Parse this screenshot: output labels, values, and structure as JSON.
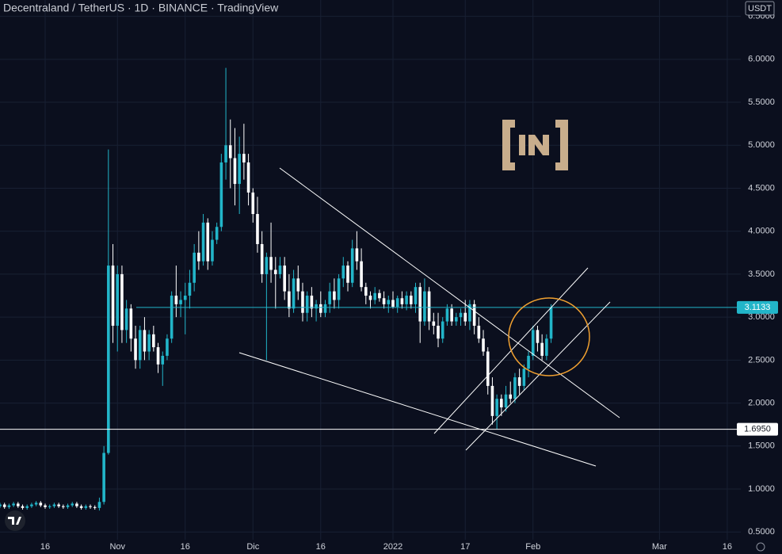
{
  "chart_data": {
    "type": "candlestick",
    "title": "Decentraland / TetherUS · 1D · BINANCE · TradingView",
    "currency": "USDT",
    "up_color": "#22b5c9",
    "down_color": "#ffffff",
    "grid": true,
    "ylim": [
      0.41,
      6.69
    ],
    "yticks": [
      {
        "value": 0.5,
        "label": "0.5000"
      },
      {
        "value": 1.0,
        "label": "1.0000"
      },
      {
        "value": 1.5,
        "label": "1.5000"
      },
      {
        "value": 2.0,
        "label": "2.0000"
      },
      {
        "value": 2.5,
        "label": "2.5000"
      },
      {
        "value": 3.0,
        "label": "3.0000"
      },
      {
        "value": 3.5,
        "label": "3.5000"
      },
      {
        "value": 4.0,
        "label": "4.0000"
      },
      {
        "value": 4.5,
        "label": "4.5000"
      },
      {
        "value": 5.0,
        "label": "5.0000"
      },
      {
        "value": 5.5,
        "label": "5.5000"
      },
      {
        "value": 6.0,
        "label": "6.0000"
      },
      {
        "value": 6.5,
        "label": "6.5000"
      }
    ],
    "xlim": [
      -26,
      138
    ],
    "xticks": [
      {
        "value": -16,
        "label": "16"
      },
      {
        "value": 0,
        "label": "Nov"
      },
      {
        "value": 15,
        "label": "16"
      },
      {
        "value": 30,
        "label": "Dic"
      },
      {
        "value": 45,
        "label": "16"
      },
      {
        "value": 61,
        "label": "2022"
      },
      {
        "value": 77,
        "label": "17"
      },
      {
        "value": 92,
        "label": "Feb"
      },
      {
        "value": 120,
        "label": "Mar"
      },
      {
        "value": 135,
        "label": "16"
      }
    ],
    "price_lines": [
      {
        "value": 3.1133,
        "label": "3.1133",
        "color": "#22b5c9"
      },
      {
        "value": 1.695,
        "label": "1.6950",
        "color": "#ffffff"
      }
    ],
    "x": [
      -26,
      -25,
      -24,
      -23,
      -22,
      -21,
      -20,
      -19,
      -18,
      -17,
      -16,
      -15,
      -14,
      -13,
      -12,
      -11,
      -10,
      -9,
      -8,
      -7,
      -6,
      -5,
      -4,
      -3,
      -2,
      -1,
      0,
      1,
      2,
      3,
      4,
      5,
      6,
      7,
      8,
      9,
      10,
      11,
      12,
      13,
      14,
      15,
      16,
      17,
      18,
      19,
      20,
      21,
      22,
      23,
      24,
      25,
      26,
      27,
      28,
      29,
      30,
      31,
      32,
      33,
      34,
      35,
      36,
      37,
      38,
      39,
      40,
      41,
      42,
      43,
      44,
      45,
      46,
      47,
      48,
      49,
      50,
      51,
      52,
      53,
      54,
      55,
      56,
      57,
      58,
      59,
      60,
      61,
      62,
      63,
      64,
      65,
      66,
      67,
      68,
      69,
      70,
      71,
      72,
      73,
      74,
      75,
      76,
      77,
      78,
      79,
      80,
      81,
      82,
      83,
      84,
      85,
      86,
      87,
      88,
      89,
      90,
      91,
      92,
      93,
      94,
      95,
      96
    ],
    "open": [
      0.8,
      0.82,
      0.79,
      0.81,
      0.83,
      0.8,
      0.78,
      0.8,
      0.82,
      0.84,
      0.81,
      0.79,
      0.8,
      0.82,
      0.8,
      0.79,
      0.81,
      0.83,
      0.8,
      0.78,
      0.8,
      0.79,
      0.78,
      0.85,
      1.42,
      3.6,
      2.9,
      3.5,
      2.85,
      3.1,
      2.75,
      2.5,
      2.85,
      2.6,
      2.8,
      2.65,
      2.45,
      2.55,
      2.75,
      3.25,
      3.15,
      3.2,
      3.25,
      3.4,
      3.75,
      3.65,
      4.1,
      3.65,
      3.9,
      4.05,
      4.8,
      5.0,
      4.85,
      4.55,
      4.9,
      4.8,
      4.45,
      4.2,
      3.85,
      3.5,
      3.7,
      3.55,
      3.5,
      3.6,
      3.3,
      3.1,
      3.45,
      3.3,
      3.05,
      3.25,
      3.1,
      3.15,
      3.05,
      3.15,
      3.3,
      3.2,
      3.45,
      3.6,
      3.4,
      3.8,
      3.65,
      3.35,
      3.25,
      3.2,
      3.28,
      3.22,
      3.15,
      3.2,
      3.12,
      3.22,
      3.15,
      3.25,
      3.15,
      3.35,
      2.95,
      3.3,
      2.95,
      2.9,
      2.75,
      2.95,
      3.1,
      2.95,
      3.0,
      3.05,
      2.95,
      3.15,
      2.9,
      2.75,
      2.6,
      2.2,
      1.85,
      2.05,
      1.95,
      2.1,
      2.05,
      2.3,
      2.2,
      2.4,
      2.55,
      2.85,
      2.7,
      2.55,
      2.75
    ],
    "high": [
      0.84,
      0.84,
      0.83,
      0.85,
      0.85,
      0.82,
      0.82,
      0.84,
      0.86,
      0.86,
      0.83,
      0.82,
      0.84,
      0.84,
      0.82,
      0.83,
      0.85,
      0.85,
      0.82,
      0.82,
      0.82,
      0.81,
      0.9,
      1.5,
      4.95,
      3.85,
      3.6,
      3.6,
      3.2,
      3.15,
      2.9,
      2.9,
      3.0,
      2.85,
      2.9,
      2.7,
      2.6,
      2.8,
      3.3,
      3.6,
      3.3,
      3.4,
      3.55,
      3.85,
      4.0,
      4.2,
      4.15,
      4.0,
      4.1,
      4.9,
      5.9,
      5.3,
      5.2,
      5.1,
      5.25,
      4.9,
      4.5,
      4.4,
      4.0,
      3.75,
      4.1,
      3.7,
      3.7,
      3.7,
      3.5,
      3.55,
      3.6,
      3.4,
      3.3,
      3.35,
      3.2,
      3.3,
      3.2,
      3.4,
      3.45,
      3.5,
      3.7,
      3.65,
      3.9,
      4.0,
      3.8,
      3.4,
      3.3,
      3.35,
      3.32,
      3.3,
      3.25,
      3.3,
      3.25,
      3.3,
      3.3,
      3.3,
      3.4,
      3.4,
      3.45,
      3.35,
      3.05,
      3.05,
      3.0,
      3.15,
      3.15,
      3.05,
      3.1,
      3.2,
      3.2,
      3.2,
      3.0,
      2.85,
      2.65,
      2.3,
      2.1,
      2.1,
      2.2,
      2.25,
      2.35,
      2.4,
      2.45,
      2.6,
      2.9,
      2.9,
      2.8,
      2.8,
      3.15
    ],
    "low": [
      0.78,
      0.77,
      0.77,
      0.79,
      0.78,
      0.76,
      0.76,
      0.78,
      0.8,
      0.79,
      0.77,
      0.77,
      0.78,
      0.78,
      0.77,
      0.77,
      0.79,
      0.78,
      0.76,
      0.76,
      0.77,
      0.76,
      0.75,
      0.82,
      1.4,
      2.7,
      2.6,
      2.7,
      2.7,
      2.6,
      2.4,
      2.4,
      2.5,
      2.5,
      2.6,
      2.35,
      2.2,
      2.5,
      2.7,
      3.0,
      3.0,
      2.8,
      3.1,
      3.3,
      3.55,
      3.6,
      3.55,
      3.6,
      3.85,
      4.0,
      4.6,
      4.5,
      4.3,
      4.2,
      4.6,
      4.3,
      4.1,
      3.75,
      3.4,
      2.5,
      3.4,
      3.1,
      3.45,
      3.2,
      3.0,
      3.05,
      3.2,
      2.95,
      2.95,
      3.0,
      2.95,
      3.0,
      3.0,
      3.05,
      3.1,
      3.1,
      3.35,
      3.3,
      3.35,
      3.55,
      3.3,
      3.15,
      3.1,
      3.15,
      3.18,
      3.1,
      3.05,
      3.1,
      3.05,
      3.1,
      3.08,
      3.1,
      3.05,
      2.7,
      2.9,
      2.85,
      2.8,
      2.65,
      2.7,
      2.9,
      2.9,
      2.9,
      2.9,
      2.9,
      2.85,
      2.8,
      2.7,
      2.55,
      2.1,
      1.75,
      1.7,
      1.85,
      1.9,
      2.0,
      2.0,
      2.1,
      2.15,
      2.3,
      2.5,
      2.6,
      2.5,
      2.5,
      2.7
    ],
    "close": [
      0.82,
      0.79,
      0.81,
      0.83,
      0.8,
      0.78,
      0.8,
      0.82,
      0.84,
      0.81,
      0.79,
      0.8,
      0.82,
      0.8,
      0.79,
      0.81,
      0.83,
      0.8,
      0.78,
      0.8,
      0.79,
      0.78,
      0.85,
      1.42,
      3.6,
      2.9,
      3.5,
      2.85,
      3.1,
      2.75,
      2.5,
      2.85,
      2.6,
      2.8,
      2.65,
      2.45,
      2.55,
      2.75,
      3.25,
      3.15,
      3.2,
      3.25,
      3.4,
      3.75,
      3.65,
      4.1,
      3.65,
      3.9,
      4.05,
      4.8,
      5.0,
      4.85,
      4.55,
      4.9,
      4.8,
      4.45,
      4.2,
      3.85,
      3.5,
      3.7,
      3.55,
      3.5,
      3.6,
      3.3,
      3.1,
      3.45,
      3.3,
      3.05,
      3.25,
      3.1,
      3.15,
      3.05,
      3.15,
      3.3,
      3.2,
      3.45,
      3.6,
      3.4,
      3.8,
      3.65,
      3.35,
      3.25,
      3.2,
      3.28,
      3.22,
      3.15,
      3.2,
      3.12,
      3.22,
      3.15,
      3.25,
      3.15,
      3.35,
      2.95,
      3.3,
      2.95,
      2.9,
      2.75,
      2.95,
      3.1,
      2.95,
      3.0,
      3.05,
      2.95,
      3.15,
      2.9,
      2.75,
      2.6,
      2.2,
      1.85,
      2.05,
      1.95,
      2.1,
      2.05,
      2.3,
      2.2,
      2.4,
      2.55,
      2.85,
      2.7,
      2.55,
      2.75,
      3.1133
    ]
  }
}
